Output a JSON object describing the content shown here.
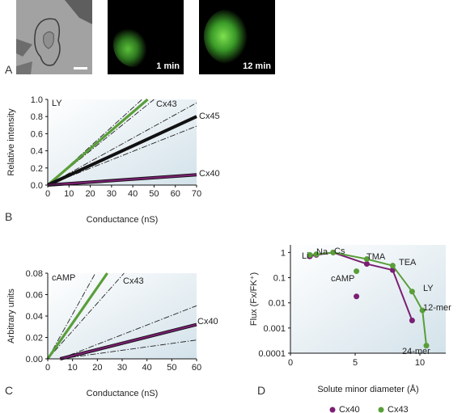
{
  "panel_labels": {
    "a": "A",
    "b": "B",
    "c": "C",
    "d": "D"
  },
  "images": [
    {
      "label": ""
    },
    {
      "label": "1 min"
    },
    {
      "label": "12 min"
    }
  ],
  "panel_b": {
    "corner_label": "LY",
    "ylabel": "Relative intensity",
    "xlabel": "Conductance (nS)",
    "series_labels": [
      "Cx43",
      "Cx45",
      "Cx40"
    ]
  },
  "panel_c": {
    "corner_label": "cAMP",
    "ylabel": "Arbitrary units",
    "xlabel": "Conductance (nS)",
    "series_labels": [
      "Cx43",
      "Cx40"
    ]
  },
  "panel_d": {
    "ylabel": "Flux (Fx/FK⁺)",
    "xlabel": "Solute minor diameter (Å)",
    "legend": [
      "Cx40",
      "Cx43"
    ],
    "point_labels": [
      "Li",
      "Na",
      "Cs",
      "TMA",
      "TEA",
      "cAMP",
      "LY",
      "12-mer",
      "24-mer"
    ]
  },
  "colors": {
    "cx40": "#7b1f72",
    "cx43": "#5a9e3a",
    "cx45": "#111111",
    "plot_bg": "#dce8ee"
  },
  "chart_data": [
    {
      "type": "line",
      "panel": "B",
      "xlabel": "Conductance (nS)",
      "ylabel": "Relative intensity",
      "xlim": [
        0,
        70
      ],
      "ylim": [
        0,
        1.0
      ],
      "xticks": [
        0,
        10,
        20,
        30,
        40,
        50,
        60,
        70
      ],
      "yticks": [
        0,
        0.2,
        0.4,
        0.6,
        0.8,
        1.0
      ],
      "series": [
        {
          "name": "Cx43",
          "x": [
            0,
            47
          ],
          "y": [
            0,
            1.0
          ]
        },
        {
          "name": "Cx45",
          "x": [
            0,
            70
          ],
          "y": [
            0,
            0.8
          ]
        },
        {
          "name": "Cx40",
          "x": [
            0,
            70
          ],
          "y": [
            0,
            0.12
          ]
        }
      ]
    },
    {
      "type": "line",
      "panel": "C",
      "xlabel": "Conductance (nS)",
      "ylabel": "Arbitrary units",
      "xlim": [
        0,
        60
      ],
      "ylim": [
        0,
        0.08
      ],
      "xticks": [
        0,
        10,
        20,
        30,
        40,
        50,
        60
      ],
      "yticks": [
        0,
        0.02,
        0.04,
        0.06,
        0.08
      ],
      "series": [
        {
          "name": "Cx43",
          "x": [
            0,
            24
          ],
          "y": [
            0,
            0.08
          ]
        },
        {
          "name": "Cx40",
          "x": [
            5,
            60
          ],
          "y": [
            0,
            0.032
          ]
        }
      ]
    },
    {
      "type": "scatter",
      "panel": "D",
      "xlabel": "Solute minor diameter (Å)",
      "ylabel": "Flux (Fx/FK⁺)",
      "xlim": [
        0,
        12
      ],
      "ylim": [
        0.0001,
        2
      ],
      "yscale": "log",
      "xticks": [
        0,
        5,
        10
      ],
      "yticks": [
        0.0001,
        0.001,
        0.01,
        0.1,
        1
      ],
      "ytick_labels": [
        "0.0001",
        "0.001",
        "0.01",
        "0.1",
        "1"
      ],
      "series": [
        {
          "name": "Cx40",
          "points": [
            [
              1.5,
              0.7
            ],
            [
              2.0,
              0.8
            ],
            [
              3.3,
              1.0
            ],
            [
              5.9,
              0.35
            ],
            [
              7.9,
              0.2
            ],
            [
              9.4,
              0.002
            ],
            [
              5.1,
              0.018
            ]
          ]
        },
        {
          "name": "Cx43",
          "points": [
            [
              1.5,
              0.8
            ],
            [
              2.0,
              0.85
            ],
            [
              3.3,
              1.0
            ],
            [
              5.9,
              0.55
            ],
            [
              7.9,
              0.3
            ],
            [
              9.4,
              0.028
            ],
            [
              10.2,
              0.005
            ],
            [
              10.5,
              0.0002
            ],
            [
              5.1,
              0.18
            ]
          ]
        }
      ]
    }
  ]
}
